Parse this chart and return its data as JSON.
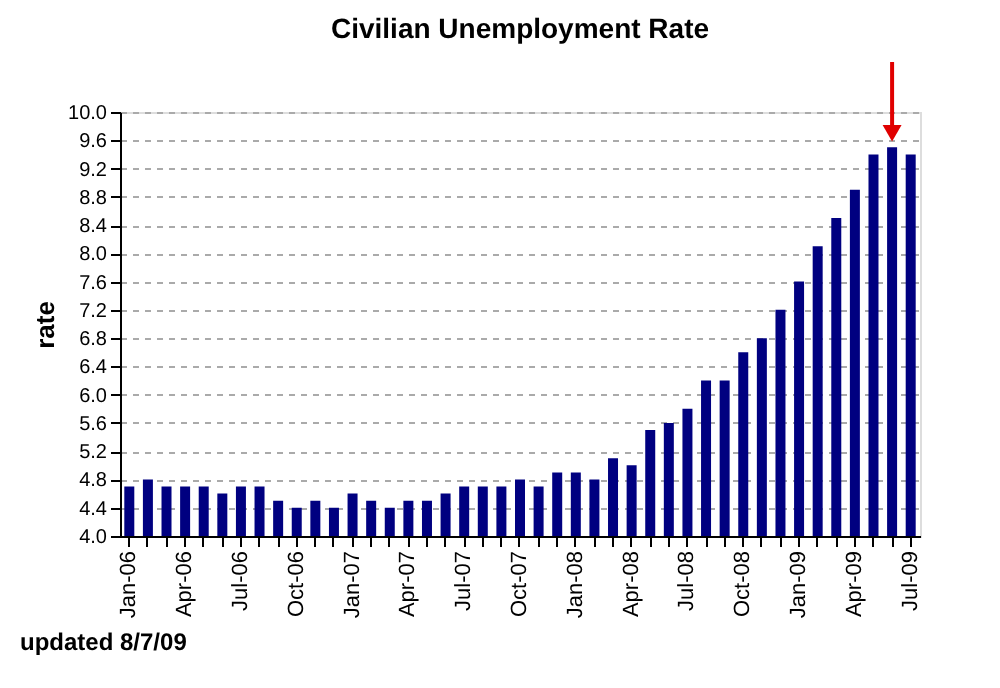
{
  "chart_data": {
    "type": "bar",
    "title": "Civilian Unemployment Rate",
    "ylabel": "rate",
    "categories": [
      "Jan-06",
      null,
      null,
      "Apr-06",
      null,
      null,
      "Jul-06",
      null,
      null,
      "Oct-06",
      null,
      null,
      "Jan-07",
      null,
      null,
      "Apr-07",
      null,
      null,
      "Jul-07",
      null,
      null,
      "Oct-07",
      null,
      null,
      "Jan-08",
      null,
      null,
      "Apr-08",
      null,
      null,
      "Jul-08",
      null,
      null,
      "Oct-08",
      null,
      null,
      "Jan-09",
      null,
      null,
      "Apr-09",
      null,
      null,
      "Jul-09"
    ],
    "values": [
      4.7,
      4.8,
      4.7,
      4.7,
      4.7,
      4.6,
      4.7,
      4.7,
      4.5,
      4.4,
      4.5,
      4.4,
      4.6,
      4.5,
      4.4,
      4.5,
      4.5,
      4.6,
      4.7,
      4.7,
      4.7,
      4.8,
      4.7,
      4.9,
      4.9,
      4.8,
      5.1,
      5.0,
      5.5,
      5.6,
      5.8,
      6.2,
      6.2,
      6.6,
      6.8,
      7.2,
      7.6,
      8.1,
      8.5,
      8.9,
      9.4,
      9.5,
      9.4
    ],
    "color": "#000080",
    "ylim": [
      4.0,
      10.0
    ],
    "yticks": [
      {
        "value": 4.0,
        "label": "4.0"
      },
      {
        "value": 4.4,
        "label": "4.4"
      },
      {
        "value": 4.8,
        "label": "4.8"
      },
      {
        "value": 5.2,
        "label": "5.2"
      },
      {
        "value": 5.6,
        "label": "5.6"
      },
      {
        "value": 6.0,
        "label": "6.0"
      },
      {
        "value": 6.4,
        "label": "6.4"
      },
      {
        "value": 6.8,
        "label": "6.8"
      },
      {
        "value": 7.2,
        "label": "7.2"
      },
      {
        "value": 7.6,
        "label": "7.6"
      },
      {
        "value": 8.0,
        "label": "8.0"
      },
      {
        "value": 8.4,
        "label": "8.4"
      },
      {
        "value": 8.8,
        "label": "8.8"
      },
      {
        "value": 9.2,
        "label": "9.2"
      },
      {
        "value": 9.6,
        "label": "9.6"
      },
      {
        "value": 10.0,
        "label": "10.0"
      }
    ],
    "grid": "y",
    "annotations": [
      "updated 8/7/09"
    ]
  }
}
